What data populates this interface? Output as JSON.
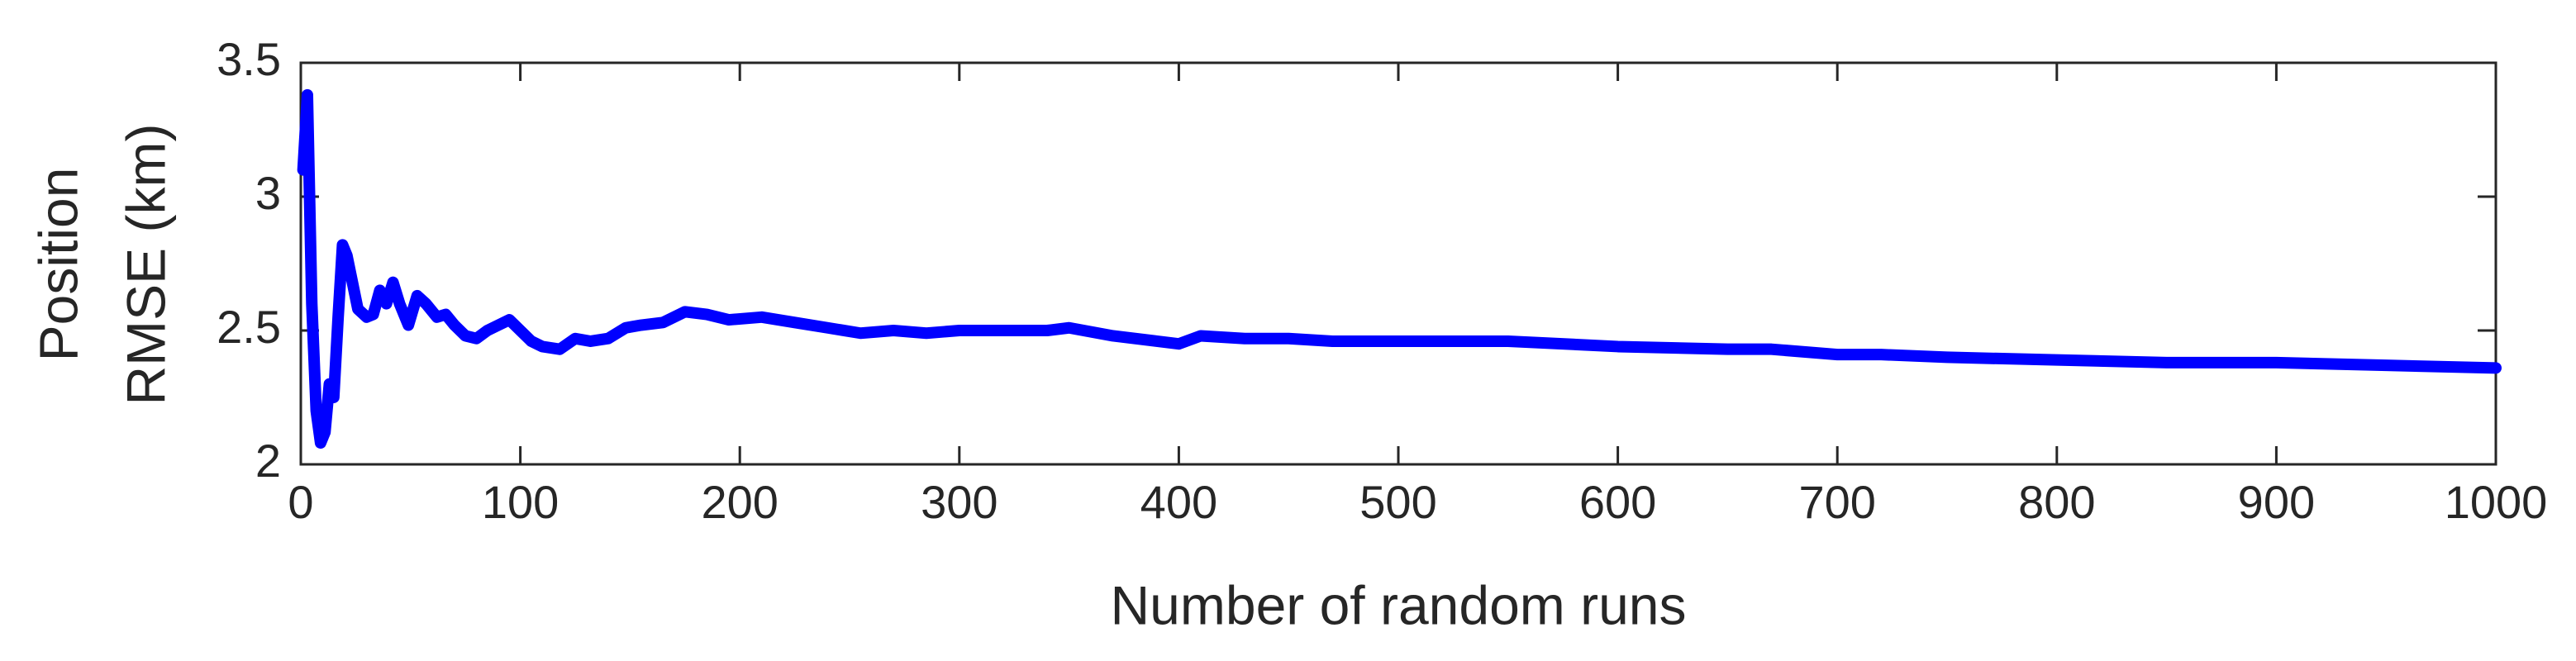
{
  "chart_data": {
    "type": "line",
    "xlabel": "Number of random runs",
    "ylabel": [
      "Position",
      "RMSE (km)"
    ],
    "xlim": [
      0,
      1000
    ],
    "xticks": [
      0,
      100,
      200,
      300,
      400,
      500,
      600,
      700,
      800,
      900,
      1000
    ],
    "ylim": [
      2,
      3.5
    ],
    "yticks": [
      2,
      2.5,
      3,
      3.5
    ],
    "grid": false,
    "series": [
      {
        "color": "#0000ff",
        "x": [
          1,
          3,
          5,
          7,
          9,
          11,
          13,
          15,
          17,
          19,
          21,
          23,
          26,
          30,
          33,
          36,
          39,
          42,
          45,
          49,
          53,
          57,
          62,
          66,
          70,
          75,
          80,
          85,
          90,
          95,
          100,
          105,
          110,
          118,
          125,
          132,
          140,
          148,
          155,
          165,
          175,
          185,
          195,
          210,
          225,
          240,
          255,
          270,
          285,
          300,
          320,
          340,
          350,
          370,
          390,
          400,
          410,
          430,
          450,
          470,
          500,
          530,
          550,
          600,
          650,
          670,
          700,
          720,
          750,
          800,
          850,
          900,
          950,
          1000
        ],
        "values": [
          3.1,
          3.38,
          2.6,
          2.2,
          2.08,
          2.12,
          2.3,
          2.25,
          2.55,
          2.82,
          2.78,
          2.7,
          2.58,
          2.55,
          2.56,
          2.65,
          2.6,
          2.68,
          2.6,
          2.52,
          2.63,
          2.6,
          2.55,
          2.56,
          2.52,
          2.48,
          2.47,
          2.5,
          2.52,
          2.54,
          2.5,
          2.46,
          2.44,
          2.43,
          2.47,
          2.46,
          2.47,
          2.51,
          2.52,
          2.53,
          2.57,
          2.56,
          2.54,
          2.55,
          2.53,
          2.51,
          2.49,
          2.5,
          2.49,
          2.5,
          2.5,
          2.5,
          2.51,
          2.48,
          2.46,
          2.45,
          2.48,
          2.47,
          2.47,
          2.46,
          2.46,
          2.46,
          2.46,
          2.44,
          2.43,
          2.43,
          2.41,
          2.41,
          2.4,
          2.39,
          2.38,
          2.38,
          2.37,
          2.36
        ]
      }
    ]
  }
}
